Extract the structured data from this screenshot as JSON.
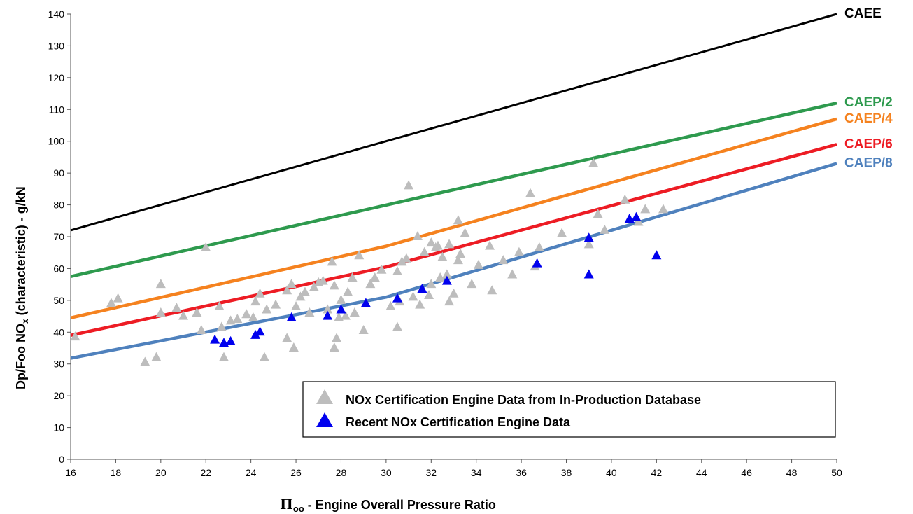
{
  "chart_data": {
    "type": "scatter",
    "title": "",
    "xlabel_symbol": "Π",
    "xlabel_subscript": "oo",
    "xlabel_rest": " - Engine Overall Pressure Ratio",
    "ylabel_main": "Dp/Foo NO",
    "ylabel_subscript": "x",
    "ylabel_rest": " (characteristic) - g/kN",
    "xlim": [
      16,
      50
    ],
    "ylim": [
      0,
      140
    ],
    "xticks": [
      "16",
      "18",
      "20",
      "22",
      "24",
      "26",
      "28",
      "30",
      "32",
      "34",
      "36",
      "38",
      "40",
      "42",
      "44",
      "46",
      "48",
      "50"
    ],
    "yticks": [
      "0",
      "10",
      "20",
      "30",
      "40",
      "50",
      "60",
      "70",
      "80",
      "90",
      "100",
      "110",
      "120",
      "130",
      "140"
    ],
    "grid": false,
    "legend_position": "bottom-right",
    "lines": [
      {
        "name": "CAEE",
        "color": "#000000",
        "x": [
          16,
          50
        ],
        "y": [
          72,
          140
        ]
      },
      {
        "name": "CAEP/2",
        "color": "#2e9a4e",
        "x": [
          16,
          50
        ],
        "y": [
          57.5,
          112
        ]
      },
      {
        "name": "CAEP/4",
        "color": "#f5821f",
        "x": [
          16,
          30,
          50
        ],
        "y": [
          44.5,
          67,
          107
        ]
      },
      {
        "name": "CAEP/6",
        "color": "#ed1c24",
        "x": [
          16,
          30,
          50
        ],
        "y": [
          39,
          60.5,
          99
        ]
      },
      {
        "name": "CAEP/8",
        "color": "#4f81bd",
        "x": [
          16,
          30,
          50
        ],
        "y": [
          31.8,
          51,
          93
        ]
      }
    ],
    "series": [
      {
        "name": "NOx Certification Engine Data from In-Production Database",
        "color": "#bdbdbd",
        "points": [
          [
            16.2,
            38.5
          ],
          [
            17.8,
            49
          ],
          [
            18.1,
            50.5
          ],
          [
            19.3,
            30.5
          ],
          [
            19.8,
            32
          ],
          [
            20.0,
            55
          ],
          [
            20.0,
            46
          ],
          [
            20.7,
            47.5
          ],
          [
            21.0,
            45
          ],
          [
            21.6,
            46
          ],
          [
            21.8,
            40.5
          ],
          [
            22.0,
            66.5
          ],
          [
            22.6,
            48
          ],
          [
            22.7,
            41.5
          ],
          [
            22.8,
            32
          ],
          [
            23.1,
            43.5
          ],
          [
            23.4,
            44
          ],
          [
            23.8,
            45.5
          ],
          [
            24.1,
            44.5
          ],
          [
            24.2,
            49.5
          ],
          [
            24.4,
            52
          ],
          [
            24.6,
            32
          ],
          [
            24.7,
            47
          ],
          [
            25.1,
            48.5
          ],
          [
            25.6,
            38
          ],
          [
            25.6,
            53
          ],
          [
            25.8,
            55
          ],
          [
            25.9,
            35
          ],
          [
            26.0,
            48
          ],
          [
            26.2,
            51
          ],
          [
            26.4,
            52.5
          ],
          [
            26.6,
            46
          ],
          [
            26.8,
            54
          ],
          [
            27.0,
            55.5
          ],
          [
            27.2,
            56
          ],
          [
            27.4,
            47
          ],
          [
            27.6,
            62
          ],
          [
            27.7,
            54.5
          ],
          [
            27.7,
            35
          ],
          [
            27.8,
            38
          ],
          [
            27.9,
            44.5
          ],
          [
            28.0,
            50
          ],
          [
            28.2,
            45
          ],
          [
            28.3,
            52.5
          ],
          [
            28.5,
            57
          ],
          [
            28.6,
            46
          ],
          [
            28.8,
            64
          ],
          [
            29.0,
            40.5
          ],
          [
            29.3,
            55
          ],
          [
            29.5,
            57
          ],
          [
            29.8,
            59.5
          ],
          [
            30.2,
            48
          ],
          [
            30.5,
            59
          ],
          [
            30.5,
            41.5
          ],
          [
            30.6,
            49.5
          ],
          [
            30.7,
            62
          ],
          [
            30.9,
            63
          ],
          [
            31.0,
            86
          ],
          [
            31.2,
            51
          ],
          [
            31.4,
            70
          ],
          [
            31.5,
            48.5
          ],
          [
            31.7,
            65
          ],
          [
            31.9,
            51.5
          ],
          [
            32.0,
            68
          ],
          [
            32.0,
            55
          ],
          [
            32.2,
            66.5
          ],
          [
            32.3,
            67
          ],
          [
            32.4,
            57
          ],
          [
            32.5,
            63.5
          ],
          [
            32.7,
            58
          ],
          [
            32.8,
            49.5
          ],
          [
            32.8,
            67.5
          ],
          [
            33.0,
            52
          ],
          [
            33.2,
            75
          ],
          [
            33.2,
            62.5
          ],
          [
            33.3,
            64.5
          ],
          [
            33.5,
            71
          ],
          [
            33.8,
            55
          ],
          [
            34.1,
            61
          ],
          [
            34.6,
            67
          ],
          [
            34.7,
            53
          ],
          [
            35.2,
            62.5
          ],
          [
            35.6,
            58
          ],
          [
            35.9,
            65
          ],
          [
            36.4,
            83.5
          ],
          [
            36.6,
            60.5
          ],
          [
            36.8,
            66.5
          ],
          [
            37.8,
            71
          ],
          [
            39.0,
            67.5
          ],
          [
            39.2,
            93
          ],
          [
            39.4,
            77
          ],
          [
            39.7,
            72
          ],
          [
            40.6,
            81.5
          ],
          [
            41.2,
            74.5
          ],
          [
            41.5,
            78.5
          ],
          [
            42.3,
            78.5
          ]
        ]
      },
      {
        "name": "Recent NOx Certification Engine Data",
        "color": "#0000ee",
        "points": [
          [
            22.4,
            37.5
          ],
          [
            22.8,
            36.5
          ],
          [
            23.1,
            37
          ],
          [
            24.2,
            39
          ],
          [
            24.4,
            40
          ],
          [
            25.8,
            44.5
          ],
          [
            27.4,
            45
          ],
          [
            28.0,
            47
          ],
          [
            29.1,
            49
          ],
          [
            30.5,
            50.5
          ],
          [
            31.6,
            53.5
          ],
          [
            32.7,
            56
          ],
          [
            36.7,
            61.5
          ],
          [
            39.0,
            58
          ],
          [
            39.0,
            69.5
          ],
          [
            40.8,
            75.5
          ],
          [
            41.1,
            76
          ],
          [
            42.0,
            64
          ]
        ]
      }
    ]
  }
}
